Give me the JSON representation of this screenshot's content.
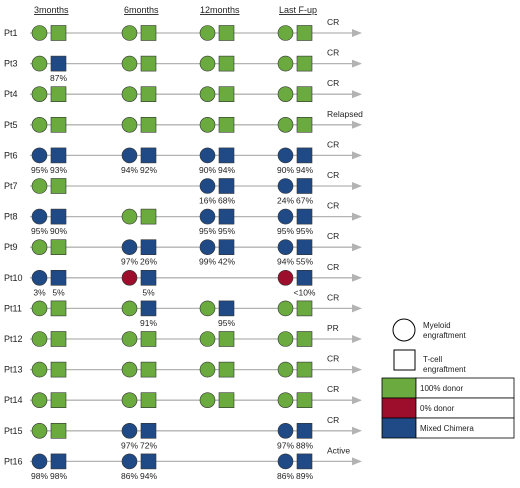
{
  "timepoints": [
    "3months",
    "6months",
    "12months",
    "Last F-up"
  ],
  "colors": {
    "donor_100": "#6aaa3e",
    "donor_0": "#9c0e2c",
    "mixed": "#1f4a86",
    "line": "#b3b3b3",
    "outline": "#333333"
  },
  "patients": [
    {
      "id": "Pt1",
      "outcome": "CR",
      "cells": [
        {
          "m": "donor_100",
          "t": "donor_100",
          "mp": "",
          "tp": ""
        },
        {
          "m": "donor_100",
          "t": "donor_100",
          "mp": "",
          "tp": ""
        },
        {
          "m": "donor_100",
          "t": "donor_100",
          "mp": "",
          "tp": ""
        },
        {
          "m": "donor_100",
          "t": "donor_100",
          "mp": "",
          "tp": ""
        }
      ]
    },
    {
      "id": "Pt3",
      "outcome": "CR",
      "cells": [
        {
          "m": "donor_100",
          "t": "mixed",
          "mp": "",
          "tp": "87%"
        },
        {
          "m": "donor_100",
          "t": "donor_100",
          "mp": "",
          "tp": ""
        },
        {
          "m": "donor_100",
          "t": "donor_100",
          "mp": "",
          "tp": ""
        },
        {
          "m": "donor_100",
          "t": "donor_100",
          "mp": "",
          "tp": ""
        }
      ]
    },
    {
      "id": "Pt4",
      "outcome": "CR",
      "cells": [
        {
          "m": "donor_100",
          "t": "donor_100",
          "mp": "",
          "tp": ""
        },
        {
          "m": "donor_100",
          "t": "donor_100",
          "mp": "",
          "tp": ""
        },
        {
          "m": "donor_100",
          "t": "donor_100",
          "mp": "",
          "tp": ""
        },
        {
          "m": "donor_100",
          "t": "donor_100",
          "mp": "",
          "tp": ""
        }
      ]
    },
    {
      "id": "Pt5",
      "outcome": "Relapsed",
      "cells": [
        {
          "m": "donor_100",
          "t": "donor_100",
          "mp": "",
          "tp": ""
        },
        {
          "m": "donor_100",
          "t": "donor_100",
          "mp": "",
          "tp": ""
        },
        {
          "m": "donor_100",
          "t": "donor_100",
          "mp": "",
          "tp": ""
        },
        {
          "m": "donor_100",
          "t": "donor_100",
          "mp": "",
          "tp": ""
        }
      ]
    },
    {
      "id": "Pt6",
      "outcome": "CR",
      "cells": [
        {
          "m": "mixed",
          "t": "mixed",
          "mp": "95%",
          "tp": "93%"
        },
        {
          "m": "mixed",
          "t": "mixed",
          "mp": "94%",
          "tp": "92%"
        },
        {
          "m": "mixed",
          "t": "mixed",
          "mp": "90%",
          "tp": "94%"
        },
        {
          "m": "mixed",
          "t": "mixed",
          "mp": "90%",
          "tp": "94%"
        }
      ]
    },
    {
      "id": "Pt7",
      "outcome": "CR",
      "cells": [
        {
          "m": "donor_100",
          "t": "donor_100",
          "mp": "",
          "tp": ""
        },
        null,
        {
          "m": "mixed",
          "t": "mixed",
          "mp": "16%",
          "tp": "68%"
        },
        {
          "m": "mixed",
          "t": "mixed",
          "mp": "24%",
          "tp": "67%"
        }
      ]
    },
    {
      "id": "Pt8",
      "outcome": "CR",
      "cells": [
        {
          "m": "mixed",
          "t": "mixed",
          "mp": "95%",
          "tp": "90%"
        },
        {
          "m": "donor_100",
          "t": "donor_100",
          "mp": "",
          "tp": ""
        },
        {
          "m": "mixed",
          "t": "mixed",
          "mp": "95%",
          "tp": "95%"
        },
        {
          "m": "mixed",
          "t": "mixed",
          "mp": "95%",
          "tp": "95%"
        }
      ]
    },
    {
      "id": "Pt9",
      "outcome": "CR",
      "cells": [
        {
          "m": "donor_100",
          "t": "donor_100",
          "mp": "",
          "tp": ""
        },
        {
          "m": "mixed",
          "t": "mixed",
          "mp": "97%",
          "tp": "26%"
        },
        {
          "m": "mixed",
          "t": "mixed",
          "mp": "99%",
          "tp": "42%"
        },
        {
          "m": "mixed",
          "t": "mixed",
          "mp": "94%",
          "tp": "55%"
        }
      ]
    },
    {
      "id": "Pt10",
      "outcome": "CR",
      "cells": [
        {
          "m": "mixed",
          "t": "mixed",
          "mp": "3%",
          "tp": "5%"
        },
        {
          "m": "donor_0",
          "t": "mixed",
          "mp": "",
          "tp": "5%"
        },
        null,
        {
          "m": "donor_0",
          "t": "mixed",
          "mp": "",
          "tp": "<10%"
        }
      ]
    },
    {
      "id": "Pt11",
      "outcome": "CR",
      "cells": [
        {
          "m": "donor_100",
          "t": "donor_100",
          "mp": "",
          "tp": ""
        },
        {
          "m": "donor_100",
          "t": "mixed",
          "mp": "",
          "tp": "91%"
        },
        {
          "m": "donor_100",
          "t": "mixed",
          "mp": "",
          "tp": "95%"
        },
        {
          "m": "donor_100",
          "t": "donor_100",
          "mp": "",
          "tp": ""
        }
      ]
    },
    {
      "id": "Pt12",
      "outcome": "PR",
      "cells": [
        {
          "m": "donor_100",
          "t": "donor_100",
          "mp": "",
          "tp": ""
        },
        {
          "m": "donor_100",
          "t": "donor_100",
          "mp": "",
          "tp": ""
        },
        {
          "m": "donor_100",
          "t": "donor_100",
          "mp": "",
          "tp": ""
        },
        {
          "m": "donor_100",
          "t": "donor_100",
          "mp": "",
          "tp": ""
        }
      ]
    },
    {
      "id": "Pt13",
      "outcome": "CR",
      "cells": [
        {
          "m": "donor_100",
          "t": "donor_100",
          "mp": "",
          "tp": ""
        },
        {
          "m": "donor_100",
          "t": "donor_100",
          "mp": "",
          "tp": ""
        },
        {
          "m": "donor_100",
          "t": "donor_100",
          "mp": "",
          "tp": ""
        },
        {
          "m": "donor_100",
          "t": "donor_100",
          "mp": "",
          "tp": ""
        }
      ]
    },
    {
      "id": "Pt14",
      "outcome": "CR",
      "cells": [
        {
          "m": "donor_100",
          "t": "donor_100",
          "mp": "",
          "tp": ""
        },
        {
          "m": "donor_100",
          "t": "donor_100",
          "mp": "",
          "tp": ""
        },
        {
          "m": "donor_100",
          "t": "donor_100",
          "mp": "",
          "tp": ""
        },
        {
          "m": "donor_100",
          "t": "donor_100",
          "mp": "",
          "tp": ""
        }
      ]
    },
    {
      "id": "Pt15",
      "outcome": "CR",
      "cells": [
        {
          "m": "donor_100",
          "t": "donor_100",
          "mp": "",
          "tp": ""
        },
        {
          "m": "mixed",
          "t": "mixed",
          "mp": "97%",
          "tp": "72%"
        },
        null,
        {
          "m": "mixed",
          "t": "mixed",
          "mp": "97%",
          "tp": "88%"
        }
      ]
    },
    {
      "id": "Pt16",
      "outcome": "Active",
      "cells": [
        {
          "m": "mixed",
          "t": "mixed",
          "mp": "98%",
          "tp": "98%"
        },
        {
          "m": "mixed",
          "t": "mixed",
          "mp": "86%",
          "tp": "94%"
        },
        null,
        {
          "m": "mixed",
          "t": "mixed",
          "mp": "86%",
          "tp": "89%"
        }
      ]
    }
  ],
  "legend": {
    "myeloid_label": "Myeloid engraftment",
    "myeloid_lines": [
      "Myeloid",
      "engraftment"
    ],
    "tcell_label": "T-cell engraftment",
    "tcell_lines": [
      "T-cell",
      "engraftment"
    ],
    "colors": [
      {
        "color": "donor_100",
        "label": "100% donor"
      },
      {
        "color": "donor_0",
        "label": "0% donor"
      },
      {
        "color": "mixed",
        "label": "Mixed Chimera"
      }
    ]
  }
}
